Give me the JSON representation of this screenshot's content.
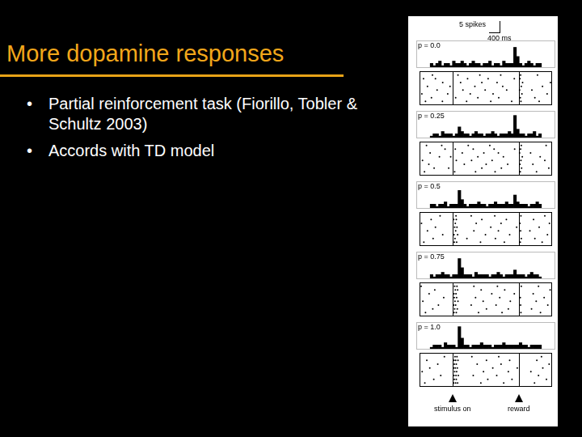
{
  "slide": {
    "title": "More dopamine responses",
    "bullets": [
      "Partial reinforcement task (Fiorillo, Tobler & Schultz 2003)",
      "Accords with TD model"
    ]
  },
  "figure": {
    "scale_bar": {
      "spikes": 5,
      "spikes_label": "5 spikes",
      "ms": 400,
      "ms_label": "400 ms"
    },
    "events": [
      {
        "time": 0,
        "label": "stimulus on"
      },
      {
        "time": 2000,
        "label": "reward"
      }
    ]
  },
  "chart_data": [
    {
      "type": "histogram",
      "title": "p = 0.0",
      "bins": [
        -1000,
        -900,
        -800,
        -700,
        -600,
        -500,
        -400,
        -300,
        -200,
        -100,
        0,
        100,
        200,
        300,
        400,
        500,
        600,
        700,
        800,
        900,
        1000,
        1100,
        1200,
        1300,
        1400,
        1500,
        1600,
        1700,
        1800,
        1900,
        2000,
        2100,
        2200,
        2300,
        2400,
        2500,
        2600,
        2700,
        2800,
        2900,
        3000
      ],
      "values": [
        2,
        1,
        2,
        3,
        1,
        2,
        2,
        1,
        3,
        2,
        2,
        3,
        2,
        1,
        2,
        3,
        2,
        2,
        1,
        2,
        2,
        3,
        1,
        2,
        2,
        1,
        3,
        2,
        2,
        2,
        9,
        5,
        2,
        1,
        2,
        3,
        2,
        1,
        2,
        2
      ],
      "color": "#000000",
      "xlim": [
        -1000,
        3000
      ],
      "ylim": [
        0,
        12
      ],
      "grid": false,
      "tick_labels": false,
      "raster": {
        "ylim": [
          0,
          9
        ],
        "color": "#000000",
        "trials": [
          [
            -820,
            -310,
            420,
            1150,
            1780,
            2060,
            2610
          ],
          [
            -640,
            90,
            760,
            1390,
            2040,
            2480
          ],
          [
            -930,
            -150,
            530,
            1220,
            2090,
            2850
          ],
          [
            -470,
            310,
            980,
            1630,
            2020,
            2390
          ],
          [
            -760,
            -80,
            670,
            1510,
            2070,
            2710
          ],
          [
            -300,
            240,
            880,
            1340,
            2110,
            2950
          ],
          [
            -880,
            -520,
            450,
            1070,
            1860,
            2030
          ],
          [
            -610,
            160,
            820,
            1450,
            2050,
            2560
          ]
        ]
      }
    },
    {
      "type": "histogram",
      "title": "p = 0.25",
      "bins": [
        -1000,
        -900,
        -800,
        -700,
        -600,
        -500,
        -400,
        -300,
        -200,
        -100,
        0,
        100,
        200,
        300,
        400,
        500,
        600,
        700,
        800,
        900,
        1000,
        1100,
        1200,
        1300,
        1400,
        1500,
        1600,
        1700,
        1800,
        1900,
        2000,
        2100,
        2200,
        2300,
        2400,
        2500,
        2600,
        2700,
        2800,
        2900,
        3000
      ],
      "values": [
        1,
        2,
        2,
        1,
        3,
        2,
        2,
        2,
        1,
        2,
        5,
        3,
        2,
        2,
        1,
        2,
        3,
        2,
        2,
        1,
        2,
        2,
        3,
        2,
        1,
        2,
        2,
        2,
        3,
        2,
        10,
        4,
        2,
        2,
        1,
        2,
        2,
        3,
        1,
        2
      ],
      "color": "#000000",
      "xlim": [
        -1000,
        3000
      ],
      "ylim": [
        0,
        12
      ],
      "grid": false,
      "tick_labels": false,
      "raster": {
        "ylim": [
          0,
          9
        ],
        "color": "#000000",
        "trials": [
          [
            -850,
            60,
            690,
            1280,
            2040,
            2530
          ],
          [
            -560,
            -120,
            880,
            1470,
            2080,
            2900
          ],
          [
            -720,
            350,
            1010,
            1660,
            2030,
            2420
          ],
          [
            -910,
            110,
            570,
            1190,
            2060,
            2780
          ],
          [
            -400,
            -60,
            760,
            1530,
            2100,
            2640
          ],
          [
            -680,
            290,
            940,
            1380,
            2020,
            2350
          ],
          [
            -230,
            80,
            620,
            1250,
            1870,
            2050
          ],
          [
            -790,
            -330,
            470,
            1120,
            2070,
            2820
          ]
        ]
      }
    },
    {
      "type": "histogram",
      "title": "p = 0.5",
      "bins": [
        -1000,
        -900,
        -800,
        -700,
        -600,
        -500,
        -400,
        -300,
        -200,
        -100,
        0,
        100,
        200,
        300,
        400,
        500,
        600,
        700,
        800,
        900,
        1000,
        1100,
        1200,
        1300,
        1400,
        1500,
        1600,
        1700,
        1800,
        1900,
        2000,
        2100,
        2200,
        2300,
        2400,
        2500,
        2600,
        2700,
        2800,
        2900,
        3000
      ],
      "values": [
        2,
        2,
        1,
        2,
        2,
        3,
        1,
        2,
        2,
        2,
        8,
        4,
        2,
        1,
        2,
        2,
        2,
        3,
        2,
        2,
        1,
        2,
        2,
        3,
        2,
        2,
        2,
        3,
        2,
        2,
        6,
        3,
        2,
        2,
        2,
        1,
        2,
        2,
        3,
        2
      ],
      "color": "#000000",
      "xlim": [
        -1000,
        3000
      ],
      "ylim": [
        0,
        12
      ],
      "grid": false,
      "tick_labels": false,
      "raster": {
        "ylim": [
          0,
          9
        ],
        "color": "#000000",
        "trials": [
          [
            -870,
            50,
            120,
            840,
            1560,
            2040,
            2700
          ],
          [
            -590,
            70,
            430,
            1290,
            2070,
            2480
          ],
          [
            -300,
            40,
            150,
            990,
            1720,
            2860
          ],
          [
            -760,
            90,
            640,
            1380,
            2050,
            2330
          ],
          [
            -520,
            60,
            130,
            1150,
            1930,
            2610
          ],
          [
            -940,
            80,
            710,
            1460,
            2030,
            2920
          ],
          [
            -650,
            30,
            110,
            880,
            1620,
            2440
          ],
          [
            -380,
            100,
            560,
            1270,
            2060,
            2780
          ]
        ]
      }
    },
    {
      "type": "histogram",
      "title": "p = 0.75",
      "bins": [
        -1000,
        -900,
        -800,
        -700,
        -600,
        -500,
        -400,
        -300,
        -200,
        -100,
        0,
        100,
        200,
        300,
        400,
        500,
        600,
        700,
        800,
        900,
        1000,
        1100,
        1200,
        1300,
        1400,
        1500,
        1600,
        1700,
        1800,
        1900,
        2000,
        2100,
        2200,
        2300,
        2400,
        2500,
        2600,
        2700,
        2800,
        2900,
        3000
      ],
      "values": [
        2,
        1,
        2,
        2,
        3,
        2,
        2,
        1,
        2,
        2,
        9,
        5,
        2,
        2,
        2,
        1,
        3,
        2,
        2,
        2,
        2,
        1,
        2,
        2,
        3,
        2,
        1,
        2,
        2,
        2,
        4,
        2,
        2,
        2,
        1,
        2,
        3,
        2,
        2,
        1
      ],
      "color": "#000000",
      "xlim": [
        -1000,
        3000
      ],
      "ylim": [
        0,
        12
      ],
      "grid": false,
      "tick_labels": false,
      "raster": {
        "ylim": [
          0,
          9
        ],
        "color": "#000000",
        "trials": [
          [
            -820,
            40,
            110,
            780,
            1490,
            2060,
            2650
          ],
          [
            -600,
            60,
            140,
            1020,
            1680,
            2380
          ],
          [
            -430,
            30,
            90,
            560,
            1310,
            2050,
            2870
          ],
          [
            -900,
            70,
            160,
            920,
            1740,
            2520
          ],
          [
            -270,
            50,
            120,
            690,
            1420,
            2040,
            2760
          ],
          [
            -710,
            40,
            100,
            1180,
            1860,
            2430
          ],
          [
            -540,
            80,
            150,
            860,
            1570,
            2940
          ],
          [
            -950,
            60,
            130,
            640,
            1350,
            2070,
            2590
          ]
        ]
      }
    },
    {
      "type": "histogram",
      "title": "p = 1.0",
      "bins": [
        -1000,
        -900,
        -800,
        -700,
        -600,
        -500,
        -400,
        -300,
        -200,
        -100,
        0,
        100,
        200,
        300,
        400,
        500,
        600,
        700,
        800,
        900,
        1000,
        1100,
        1200,
        1300,
        1400,
        1500,
        1600,
        1700,
        1800,
        1900,
        2000,
        2100,
        2200,
        2300,
        2400,
        2500,
        2600,
        2700,
        2800,
        2900,
        3000
      ],
      "values": [
        1,
        2,
        2,
        2,
        1,
        3,
        2,
        2,
        2,
        1,
        10,
        5,
        2,
        2,
        1,
        2,
        2,
        2,
        3,
        2,
        2,
        2,
        1,
        2,
        2,
        2,
        3,
        2,
        2,
        2,
        2,
        2,
        3,
        2,
        2,
        1,
        2,
        2,
        2,
        2
      ],
      "color": "#000000",
      "xlim": [
        -1000,
        3000
      ],
      "ylim": [
        0,
        12
      ],
      "grid": false,
      "tick_labels": false,
      "raster": {
        "ylim": [
          0,
          9
        ],
        "color": "#000000",
        "trials": [
          [
            -840,
            30,
            90,
            150,
            850,
            1540,
            2470
          ],
          [
            -570,
            50,
            110,
            1060,
            1790,
            2830
          ],
          [
            -360,
            40,
            100,
            170,
            620,
            1330,
            2590
          ],
          [
            -920,
            60,
            120,
            930,
            1680,
            2360
          ],
          [
            -690,
            30,
            80,
            140,
            1210,
            1950,
            2720
          ],
          [
            -450,
            50,
            110,
            740,
            1460,
            2910
          ],
          [
            -780,
            40,
            90,
            160,
            1020,
            1720,
            2540
          ],
          [
            -250,
            70,
            130,
            580,
            1390,
            2680
          ]
        ]
      }
    }
  ]
}
